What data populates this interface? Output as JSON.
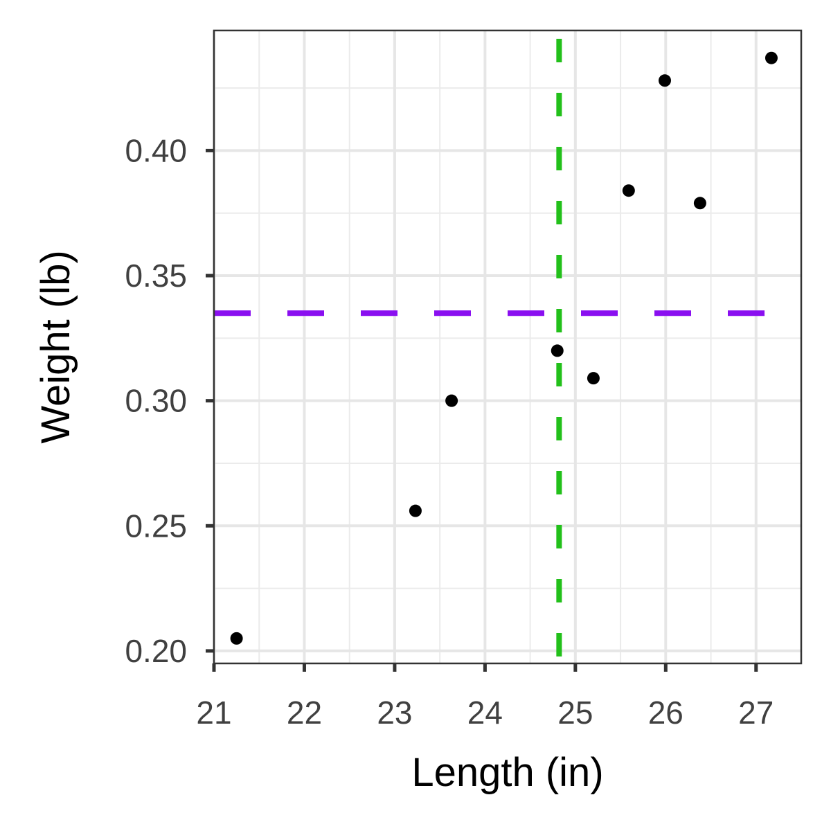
{
  "chart_data": {
    "type": "scatter",
    "xlabel": "Length (in)",
    "ylabel": "Weight (lb)",
    "xlim": [
      21,
      27.5
    ],
    "ylim": [
      0.195,
      0.448
    ],
    "x_ticks": [
      21,
      22,
      23,
      24,
      25,
      26,
      27
    ],
    "x_tick_labels": [
      "21",
      "22",
      "23",
      "24",
      "25",
      "26",
      "27"
    ],
    "y_ticks": [
      0.2,
      0.25,
      0.3,
      0.35,
      0.4
    ],
    "y_tick_labels": [
      "0.20",
      "0.25",
      "0.30",
      "0.35",
      "0.40"
    ],
    "grid": true,
    "points": [
      {
        "x": 21.25,
        "y": 0.205
      },
      {
        "x": 23.23,
        "y": 0.256
      },
      {
        "x": 23.63,
        "y": 0.3
      },
      {
        "x": 24.8,
        "y": 0.32
      },
      {
        "x": 25.2,
        "y": 0.309
      },
      {
        "x": 25.59,
        "y": 0.384
      },
      {
        "x": 25.99,
        "y": 0.428
      },
      {
        "x": 26.38,
        "y": 0.379
      },
      {
        "x": 27.17,
        "y": 0.437
      }
    ],
    "reference_lines": [
      {
        "orientation": "vertical",
        "value": 24.82,
        "color": "#22c01a",
        "style": "dashed"
      },
      {
        "orientation": "horizontal",
        "value": 0.335,
        "color": "#8a0ff0",
        "style": "dashed"
      }
    ],
    "point_color": "#000000"
  }
}
